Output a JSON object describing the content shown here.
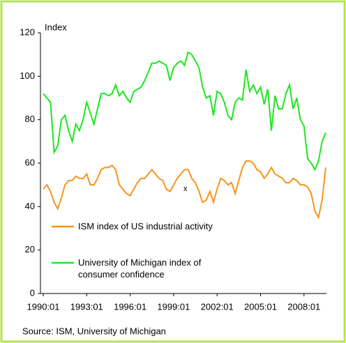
{
  "chart_data": {
    "type": "line",
    "y_label": "Index",
    "source": "Source: ISM, University of Michigan",
    "annotation": "x",
    "x": [
      "1990:01",
      "1990:04",
      "1990:07",
      "1990:10",
      "1991:01",
      "1991:04",
      "1991:07",
      "1991:10",
      "1992:01",
      "1992:04",
      "1992:07",
      "1992:10",
      "1993:01",
      "1993:04",
      "1993:07",
      "1993:10",
      "1994:01",
      "1994:04",
      "1994:07",
      "1994:10",
      "1995:01",
      "1995:04",
      "1995:07",
      "1995:10",
      "1996:01",
      "1996:04",
      "1996:07",
      "1996:10",
      "1997:01",
      "1997:04",
      "1997:07",
      "1997:10",
      "1998:01",
      "1998:04",
      "1998:07",
      "1998:10",
      "1999:01",
      "1999:04",
      "1999:07",
      "1999:10",
      "2000:01",
      "2000:04",
      "2000:07",
      "2000:10",
      "2001:01",
      "2001:04",
      "2001:07",
      "2001:10",
      "2002:01",
      "2002:04",
      "2002:07",
      "2002:10",
      "2003:01",
      "2003:04",
      "2003:07",
      "2003:10",
      "2004:01",
      "2004:04",
      "2004:07",
      "2004:10",
      "2005:01",
      "2005:04",
      "2005:07",
      "2005:10",
      "2006:01",
      "2006:04",
      "2006:07",
      "2006:10",
      "2007:01",
      "2007:04",
      "2007:07",
      "2007:10",
      "2008:01",
      "2008:04",
      "2008:07",
      "2008:10",
      "2009:01",
      "2009:04",
      "2009:07"
    ],
    "series": [
      {
        "name": "ISM index of US industrial activity",
        "color": "#f7941d",
        "values": [
          48,
          50,
          47,
          42,
          39,
          44,
          50,
          52,
          52,
          54,
          53,
          53,
          55,
          50,
          50,
          53,
          57,
          58,
          58,
          59,
          57,
          50,
          48,
          46,
          45,
          48,
          51,
          53,
          53,
          55,
          57,
          55,
          53,
          52,
          48,
          47,
          50,
          53,
          55,
          57,
          57,
          53,
          51,
          47,
          42,
          43,
          47,
          42,
          48,
          53,
          52,
          50,
          51,
          46,
          52,
          58,
          61,
          61,
          60,
          57,
          56,
          53,
          55,
          58,
          55,
          54,
          53,
          51,
          51,
          53,
          52,
          50,
          50,
          49,
          46,
          38,
          35,
          43,
          58
        ]
      },
      {
        "name": "University of Michigan index of consumer confidence",
        "color": "#1ee61e",
        "values": [
          92,
          90,
          88,
          65,
          68,
          80,
          82,
          75,
          70,
          78,
          75,
          80,
          88,
          83,
          78,
          85,
          92,
          92,
          91,
          92,
          96,
          91,
          93,
          90,
          88,
          93,
          94,
          95,
          98,
          102,
          106,
          106,
          107,
          106,
          105,
          98,
          104,
          106,
          107,
          105,
          111,
          110,
          107,
          104,
          95,
          90,
          91,
          82,
          93,
          92,
          88,
          82,
          80,
          88,
          90,
          89,
          103,
          93,
          96,
          92,
          95,
          87,
          94,
          75,
          91,
          85,
          85,
          92,
          96,
          85,
          90,
          80,
          77,
          62,
          60,
          57,
          61,
          70,
          74
        ]
      }
    ],
    "xticks": [
      "1990:01",
      "1993:01",
      "1996:01",
      "1999:01",
      "2002:01",
      "2005:01",
      "2008:01"
    ],
    "ylim": [
      0,
      120
    ],
    "yticks": [
      0,
      20,
      40,
      60,
      80,
      100,
      120
    ],
    "grid": false
  }
}
